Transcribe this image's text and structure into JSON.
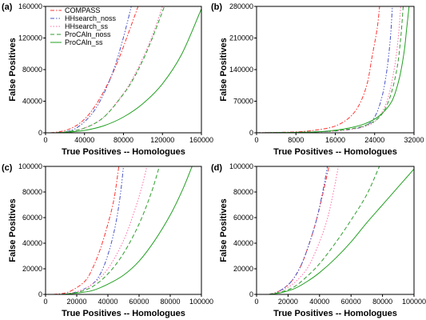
{
  "chart_data": [
    {
      "type": "line",
      "panel_label": "(a)",
      "xlabel": "True Positives -- Homologues",
      "ylabel": "False Positives",
      "xlim": [
        0,
        160000
      ],
      "ylim": [
        0,
        160000
      ],
      "xticks": [
        0,
        40000,
        80000,
        120000,
        160000
      ],
      "yticks": [
        0,
        40000,
        80000,
        120000,
        160000
      ],
      "grid": false,
      "legend": "top-left",
      "series": [
        {
          "name": "COMPASS",
          "color": "#ff3333",
          "dash": "dash-dot",
          "points": [
            [
              5000,
              0
            ],
            [
              15000,
              1500
            ],
            [
              25000,
              5000
            ],
            [
              35000,
              12000
            ],
            [
              45000,
              24000
            ],
            [
              55000,
              42000
            ],
            [
              65000,
              65000
            ],
            [
              75000,
              93000
            ],
            [
              85000,
              126000
            ],
            [
              95000,
              160000
            ]
          ]
        },
        {
          "name": "HHsearch_noss",
          "color": "#4a55c8",
          "dash": "dash-dot-dot",
          "points": [
            [
              10000,
              0
            ],
            [
              20000,
              1000
            ],
            [
              30000,
              5000
            ],
            [
              40000,
              14000
            ],
            [
              50000,
              28000
            ],
            [
              60000,
              50000
            ],
            [
              70000,
              80000
            ],
            [
              78000,
              112000
            ],
            [
              84000,
              140000
            ],
            [
              88000,
              160000
            ]
          ]
        },
        {
          "name": "HHsearch_ss",
          "color": "#ff6ca8",
          "dash": "dot",
          "points": [
            [
              5000,
              0
            ],
            [
              20000,
              1000
            ],
            [
              40000,
              6000
            ],
            [
              60000,
              20000
            ],
            [
              80000,
              50000
            ],
            [
              90000,
              70000
            ],
            [
              100000,
              95000
            ],
            [
              110000,
              124000
            ],
            [
              120000,
              160000
            ]
          ]
        },
        {
          "name": "ProCAln_noss",
          "color": "#2e9e2e",
          "dash": "dash",
          "points": [
            [
              5000,
              0
            ],
            [
              20000,
              1000
            ],
            [
              40000,
              6000
            ],
            [
              60000,
              20000
            ],
            [
              80000,
              49000
            ],
            [
              90000,
              68000
            ],
            [
              100000,
              92000
            ],
            [
              110000,
              121000
            ],
            [
              122000,
              160000
            ]
          ]
        },
        {
          "name": "ProCAln_ss",
          "color": "#22a022",
          "dash": "solid",
          "points": [
            [
              5000,
              0
            ],
            [
              20000,
              500
            ],
            [
              40000,
              3000
            ],
            [
              60000,
              9000
            ],
            [
              80000,
              20000
            ],
            [
              100000,
              37000
            ],
            [
              120000,
              62000
            ],
            [
              140000,
              100000
            ],
            [
              160000,
              157000
            ]
          ]
        }
      ]
    },
    {
      "type": "line",
      "panel_label": "(b)",
      "xlabel": "True Positives -- Homologues",
      "ylabel": "False Positives",
      "xlim": [
        0,
        32000
      ],
      "ylim": [
        0,
        280000
      ],
      "xticks": [
        0,
        8000,
        16000,
        24000,
        32000
      ],
      "yticks": [
        0,
        70000,
        140000,
        210000,
        280000
      ],
      "grid": false,
      "series": [
        {
          "name": "COMPASS",
          "color": "#ff3333",
          "dash": "dash-dot",
          "points": [
            [
              0,
              0
            ],
            [
              8000,
              2000
            ],
            [
              12000,
              6000
            ],
            [
              16000,
              15000
            ],
            [
              19000,
              35000
            ],
            [
              21000,
              65000
            ],
            [
              22500,
              110000
            ],
            [
              23500,
              170000
            ],
            [
              24500,
              230000
            ],
            [
              25000,
              280000
            ]
          ]
        },
        {
          "name": "HHsearch_noss",
          "color": "#4a55c8",
          "dash": "dash-dot-dot",
          "points": [
            [
              0,
              0
            ],
            [
              12000,
              2000
            ],
            [
              18000,
              6000
            ],
            [
              22000,
              15000
            ],
            [
              24000,
              35000
            ],
            [
              25500,
              80000
            ],
            [
              26500,
              140000
            ],
            [
              27200,
              210000
            ],
            [
              27600,
              280000
            ]
          ]
        },
        {
          "name": "HHsearch_ss",
          "color": "#ff6ca8",
          "dash": "dot",
          "points": [
            [
              0,
              0
            ],
            [
              12000,
              2000
            ],
            [
              18000,
              6000
            ],
            [
              22000,
              14000
            ],
            [
              24500,
              30000
            ],
            [
              26500,
              70000
            ],
            [
              27800,
              130000
            ],
            [
              28700,
              200000
            ],
            [
              29300,
              280000
            ]
          ]
        },
        {
          "name": "ProCAln_noss",
          "color": "#2e9e2e",
          "dash": "dash",
          "points": [
            [
              0,
              0
            ],
            [
              12000,
              2000
            ],
            [
              18000,
              7000
            ],
            [
              22000,
              16000
            ],
            [
              25000,
              35000
            ],
            [
              27000,
              75000
            ],
            [
              28500,
              140000
            ],
            [
              29300,
              210000
            ],
            [
              29800,
              280000
            ]
          ]
        },
        {
          "name": "ProCAln_ss",
          "color": "#22a022",
          "dash": "solid",
          "points": [
            [
              0,
              0
            ],
            [
              12000,
              2000
            ],
            [
              18000,
              9000
            ],
            [
              22000,
              20000
            ],
            [
              25000,
              38000
            ],
            [
              27500,
              70000
            ],
            [
              29000,
              120000
            ],
            [
              30000,
              180000
            ],
            [
              30500,
              230000
            ],
            [
              31000,
              280000
            ]
          ]
        }
      ]
    },
    {
      "type": "line",
      "panel_label": "(c)",
      "xlabel": "True Positives -- Homologues",
      "ylabel": "False Positives",
      "xlim": [
        0,
        100000
      ],
      "ylim": [
        0,
        100000
      ],
      "xticks": [
        0,
        20000,
        40000,
        60000,
        80000,
        100000
      ],
      "yticks": [
        0,
        20000,
        40000,
        60000,
        80000,
        100000
      ],
      "grid": false,
      "series": [
        {
          "name": "COMPASS",
          "color": "#ff3333",
          "dash": "dash-dot",
          "points": [
            [
              5000,
              0
            ],
            [
              15000,
              2000
            ],
            [
              25000,
              10000
            ],
            [
              30000,
              20000
            ],
            [
              35000,
              35000
            ],
            [
              40000,
              55000
            ],
            [
              44000,
              75000
            ],
            [
              47000,
              100000
            ]
          ]
        },
        {
          "name": "HHsearch_noss",
          "color": "#4a55c8",
          "dash": "dash-dot-dot",
          "points": [
            [
              10000,
              0
            ],
            [
              20000,
              2000
            ],
            [
              30000,
              8000
            ],
            [
              36000,
              18000
            ],
            [
              41000,
              35000
            ],
            [
              45000,
              55000
            ],
            [
              48000,
              78000
            ],
            [
              50000,
              100000
            ]
          ]
        },
        {
          "name": "HHsearch_ss",
          "color": "#ff6ca8",
          "dash": "dot",
          "points": [
            [
              10000,
              0
            ],
            [
              20000,
              2000
            ],
            [
              30000,
              8000
            ],
            [
              40000,
              20000
            ],
            [
              50000,
              42000
            ],
            [
              57000,
              65000
            ],
            [
              62000,
              85000
            ],
            [
              65000,
              100000
            ]
          ]
        },
        {
          "name": "ProCAln_noss",
          "color": "#2e9e2e",
          "dash": "dash",
          "points": [
            [
              10000,
              0
            ],
            [
              20000,
              1500
            ],
            [
              30000,
              6000
            ],
            [
              40000,
              16000
            ],
            [
              50000,
              32000
            ],
            [
              60000,
              55000
            ],
            [
              68000,
              80000
            ],
            [
              73000,
              100000
            ]
          ]
        },
        {
          "name": "ProCAln_ss",
          "color": "#22a022",
          "dash": "solid",
          "points": [
            [
              10000,
              0
            ],
            [
              20000,
              1000
            ],
            [
              30000,
              3000
            ],
            [
              40000,
              8000
            ],
            [
              50000,
              15000
            ],
            [
              60000,
              26000
            ],
            [
              70000,
              42000
            ],
            [
              80000,
              62000
            ],
            [
              88000,
              82000
            ],
            [
              94000,
              100000
            ]
          ]
        }
      ]
    },
    {
      "type": "line",
      "panel_label": "(d)",
      "xlabel": "True Positives -- Homologues",
      "ylabel": "False Positives",
      "xlim": [
        0,
        100000
      ],
      "ylim": [
        0,
        100000
      ],
      "xticks": [
        0,
        20000,
        40000,
        60000,
        80000,
        100000
      ],
      "yticks": [
        0,
        20000,
        40000,
        60000,
        80000,
        100000
      ],
      "grid": false,
      "series": [
        {
          "name": "COMPASS",
          "color": "#ff3333",
          "dash": "dash-dot",
          "points": [
            [
              8000,
              0
            ],
            [
              15000,
              3000
            ],
            [
              22000,
              10000
            ],
            [
              28000,
              22000
            ],
            [
              33000,
              38000
            ],
            [
              38000,
              58000
            ],
            [
              42000,
              78000
            ],
            [
              46000,
              100000
            ]
          ]
        },
        {
          "name": "HHsearch_noss",
          "color": "#4a55c8",
          "dash": "dash-dot-dot",
          "points": [
            [
              8000,
              0
            ],
            [
              15000,
              3000
            ],
            [
              22000,
              10000
            ],
            [
              28000,
              22000
            ],
            [
              33000,
              38000
            ],
            [
              38000,
              58000
            ],
            [
              42000,
              80000
            ],
            [
              45000,
              100000
            ]
          ]
        },
        {
          "name": "HHsearch_ss",
          "color": "#ff6ca8",
          "dash": "dot",
          "points": [
            [
              8000,
              0
            ],
            [
              16000,
              3000
            ],
            [
              24000,
              9000
            ],
            [
              32000,
              20000
            ],
            [
              38000,
              35000
            ],
            [
              44000,
              55000
            ],
            [
              48000,
              75000
            ],
            [
              52000,
              100000
            ]
          ]
        },
        {
          "name": "ProCAln_noss",
          "color": "#2e9e2e",
          "dash": "dash",
          "points": [
            [
              8000,
              0
            ],
            [
              16000,
              2000
            ],
            [
              24000,
              6000
            ],
            [
              32000,
              14000
            ],
            [
              40000,
              24000
            ],
            [
              50000,
              40000
            ],
            [
              60000,
              58000
            ],
            [
              70000,
              78000
            ],
            [
              78000,
              100000
            ]
          ]
        },
        {
          "name": "ProCAln_ss",
          "color": "#22a022",
          "dash": "solid",
          "points": [
            [
              8000,
              0
            ],
            [
              16000,
              1500
            ],
            [
              24000,
              4500
            ],
            [
              32000,
              10000
            ],
            [
              40000,
              17000
            ],
            [
              50000,
              28000
            ],
            [
              60000,
              41000
            ],
            [
              70000,
              56000
            ],
            [
              80000,
              70000
            ],
            [
              90000,
              84000
            ],
            [
              100000,
              98000
            ]
          ]
        }
      ]
    }
  ]
}
